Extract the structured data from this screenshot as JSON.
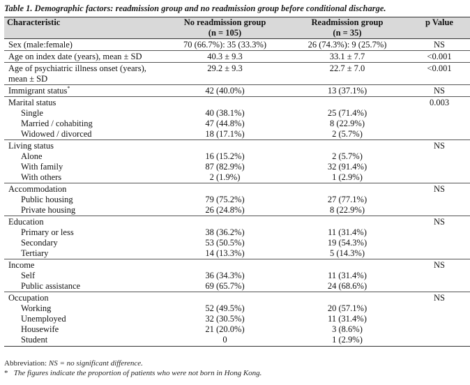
{
  "caption": "Table 1. Demographic factors: readmission group and no readmission group before conditional discharge.",
  "header": {
    "characteristic": "Characteristic",
    "no_readmission_line1": "No readmission group",
    "no_readmission_line2": "(n = 105)",
    "readmission_line1": "Readmission group",
    "readmission_line2": "(n = 35)",
    "p_value": "p Value"
  },
  "rows": {
    "sex": {
      "label": "Sex (male:female)",
      "no": "70 (66.7%): 35 (33.3%)",
      "re": "26 (74.3%): 9 (25.7%)",
      "p": "NS"
    },
    "age_index": {
      "label": "Age on index date (years), mean ± SD",
      "no": "40.3 ± 9.3",
      "re": "33.1 ± 7.7",
      "p": "<0.001"
    },
    "age_onset": {
      "label_line1": "Age of psychiatric illness onset (years),",
      "label_line2": "mean ± SD",
      "no": "29.2 ± 9.3",
      "re": "22.7 ± 7.0",
      "p": "<0.001"
    },
    "immigrant": {
      "label": "Immigrant status",
      "mark": "*",
      "no": "42 (40.0%)",
      "re": "13 (37.1%)",
      "p": "NS"
    },
    "marital": {
      "label": "Marital status",
      "p": "0.003",
      "items": [
        {
          "label": "Single",
          "no": "40 (38.1%)",
          "re": "25 (71.4%)"
        },
        {
          "label": "Married / cohabiting",
          "no": "47 (44.8%)",
          "re": "8 (22.9%)"
        },
        {
          "label": "Widowed / divorced",
          "no": "18 (17.1%)",
          "re": "2 (5.7%)"
        }
      ]
    },
    "living": {
      "label": "Living status",
      "p": "NS",
      "items": [
        {
          "label": "Alone",
          "no": "16 (15.2%)",
          "re": "2 (5.7%)"
        },
        {
          "label": "With family",
          "no": "87 (82.9%)",
          "re": "32 (91.4%)"
        },
        {
          "label": "With others",
          "no": "2 (1.9%)",
          "re": "1 (2.9%)"
        }
      ]
    },
    "accommodation": {
      "label": "Accommodation",
      "p": "NS",
      "items": [
        {
          "label": "Public housing",
          "no": "79 (75.2%)",
          "re": "27 (77.1%)"
        },
        {
          "label": "Private housing",
          "no": "26 (24.8%)",
          "re": "8 (22.9%)"
        }
      ]
    },
    "education": {
      "label": "Education",
      "p": "NS",
      "items": [
        {
          "label": "Primary or less",
          "no": "38 (36.2%)",
          "re": "11 (31.4%)"
        },
        {
          "label": "Secondary",
          "no": "53 (50.5%)",
          "re": "19 (54.3%)"
        },
        {
          "label": "Tertiary",
          "no": "14 (13.3%)",
          "re": "5 (14.3%)"
        }
      ]
    },
    "income": {
      "label": "Income",
      "p": "NS",
      "items": [
        {
          "label": "Self",
          "no": "36 (34.3%)",
          "re": "11 (31.4%)"
        },
        {
          "label": "Public assistance",
          "no": "69 (65.7%)",
          "re": "24 (68.6%)"
        }
      ]
    },
    "occupation": {
      "label": "Occupation",
      "p": "NS",
      "items": [
        {
          "label": "Working",
          "no": "52 (49.5%)",
          "re": "20 (57.1%)"
        },
        {
          "label": "Unemployed",
          "no": "32 (30.5%)",
          "re": "11 (31.4%)"
        },
        {
          "label": "Housewife",
          "no": "21 (20.0%)",
          "re": "3 (8.6%)"
        },
        {
          "label": "Student",
          "no": "0",
          "re": "1 (2.9%)"
        }
      ]
    }
  },
  "footnotes": {
    "abbrev_prefix": "Abbreviation: ",
    "abbrev_text": "NS = no significant difference.",
    "star_mark": "*",
    "star_text": "The figures indicate the proportion of patients who were not born in Hong Kong."
  }
}
